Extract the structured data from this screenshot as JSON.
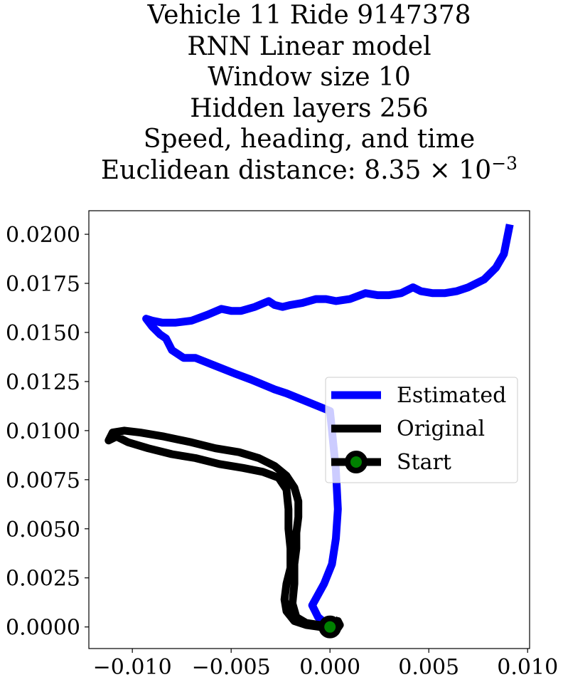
{
  "title": {
    "line1": "Vehicle 11 Ride 9147378",
    "line2": "RNN Linear model",
    "line3": "Window size 10",
    "line4": "Hidden layers 256",
    "line5": "Speed, heading, and time",
    "line6_prefix": "Euclidean distance: 8.35 × 10",
    "line6_exponent": "−3"
  },
  "chart_data": {
    "type": "line",
    "xlim": [
      -0.0122,
      0.0101
    ],
    "ylim": [
      -0.0011,
      0.0212
    ],
    "x_ticks": [
      -0.01,
      -0.005,
      0.0,
      0.005,
      0.01
    ],
    "x_tick_labels": [
      "−0.010",
      "−0.005",
      "0.000",
      "0.005",
      "0.010"
    ],
    "y_ticks": [
      0.0,
      0.0025,
      0.005,
      0.0075,
      0.01,
      0.0125,
      0.015,
      0.0175,
      0.02
    ],
    "y_tick_labels": [
      "0.0000",
      "0.0025",
      "0.0050",
      "0.0075",
      "0.0100",
      "0.0125",
      "0.0150",
      "0.0175",
      "0.0200"
    ],
    "grid": false,
    "legend_placement": "center-right",
    "series": [
      {
        "name": "Estimated",
        "color": "#0000ff",
        "x": [
          0.0,
          -0.0006,
          -0.0009,
          -0.0003,
          0.0001,
          0.0003,
          0.0004,
          0.0003,
          0.0001,
          0.0,
          -0.0022,
          -0.0028,
          -0.004,
          -0.0048,
          -0.0058,
          -0.0068,
          -0.0074,
          -0.008,
          -0.0083,
          -0.0086,
          -0.009,
          -0.0093,
          -0.009,
          -0.0085,
          -0.0078,
          -0.007,
          -0.0062,
          -0.0055,
          -0.005,
          -0.0045,
          -0.0038,
          -0.0031,
          -0.0028,
          -0.0024,
          -0.002,
          -0.0014,
          -0.0007,
          -0.0002,
          0.0003,
          0.001,
          0.0018,
          0.0024,
          0.003,
          0.0036,
          0.0042,
          0.0046,
          0.0052,
          0.0058,
          0.0064,
          0.007,
          0.0078,
          0.0084,
          0.0088,
          0.0091
        ],
        "y": [
          0.0,
          0.0005,
          0.0011,
          0.0022,
          0.0032,
          0.0045,
          0.006,
          0.008,
          0.01,
          0.011,
          0.0119,
          0.0121,
          0.0126,
          0.0129,
          0.0133,
          0.0137,
          0.0137,
          0.0141,
          0.0147,
          0.0149,
          0.0153,
          0.0157,
          0.0156,
          0.0155,
          0.0155,
          0.0156,
          0.0159,
          0.0162,
          0.0161,
          0.0161,
          0.0163,
          0.0166,
          0.0164,
          0.0163,
          0.0164,
          0.0165,
          0.0167,
          0.0167,
          0.0166,
          0.0167,
          0.017,
          0.0169,
          0.0169,
          0.017,
          0.0173,
          0.0171,
          0.017,
          0.017,
          0.0171,
          0.0173,
          0.0177,
          0.0183,
          0.019,
          0.0205
        ]
      },
      {
        "name": "Original",
        "color": "#000000",
        "x": [
          0.0,
          -0.0005,
          -0.0012,
          -0.0018,
          -0.0022,
          -0.0023,
          -0.0022,
          -0.002,
          -0.002,
          -0.0021,
          -0.0021,
          -0.0022,
          -0.0026,
          -0.0034,
          -0.0044,
          -0.0056,
          -0.0068,
          -0.008,
          -0.0092,
          -0.0102,
          -0.0108,
          -0.0112,
          -0.011,
          -0.0104,
          -0.0096,
          -0.0084,
          -0.007,
          -0.0058,
          -0.0046,
          -0.0036,
          -0.0028,
          -0.0022,
          -0.0018,
          -0.0016,
          -0.0016,
          -0.0017,
          -0.0017,
          -0.0018,
          -0.0018,
          -0.0019,
          -0.0017,
          -0.0012,
          -0.0005,
          0.0,
          0.0003,
          0.0005,
          0.0004,
          0.0001,
          -0.0001,
          0.0001,
          0.0004,
          0.0002
        ],
        "y": [
          0.0,
          0.0,
          0.0001,
          0.0003,
          0.0008,
          0.0014,
          0.0022,
          0.003,
          0.004,
          0.005,
          0.006,
          0.007,
          0.0076,
          0.0079,
          0.0081,
          0.0083,
          0.0086,
          0.0088,
          0.0091,
          0.0094,
          0.0097,
          0.0095,
          0.0099,
          0.01,
          0.0099,
          0.0097,
          0.0094,
          0.0091,
          0.0089,
          0.0086,
          0.0082,
          0.0077,
          0.0071,
          0.0064,
          0.0056,
          0.0048,
          0.004,
          0.0032,
          0.0022,
          0.0012,
          0.0005,
          0.0002,
          0.0001,
          0.0,
          -0.0002,
          0.0001,
          0.0003,
          0.0001,
          -0.0001,
          0.0,
          0.0002,
          0.0004
        ]
      },
      {
        "name": "Start",
        "type": "marker",
        "color": "#000000",
        "marker_face": "#008000",
        "x": [
          0.0
        ],
        "y": [
          0.0
        ]
      }
    ]
  }
}
